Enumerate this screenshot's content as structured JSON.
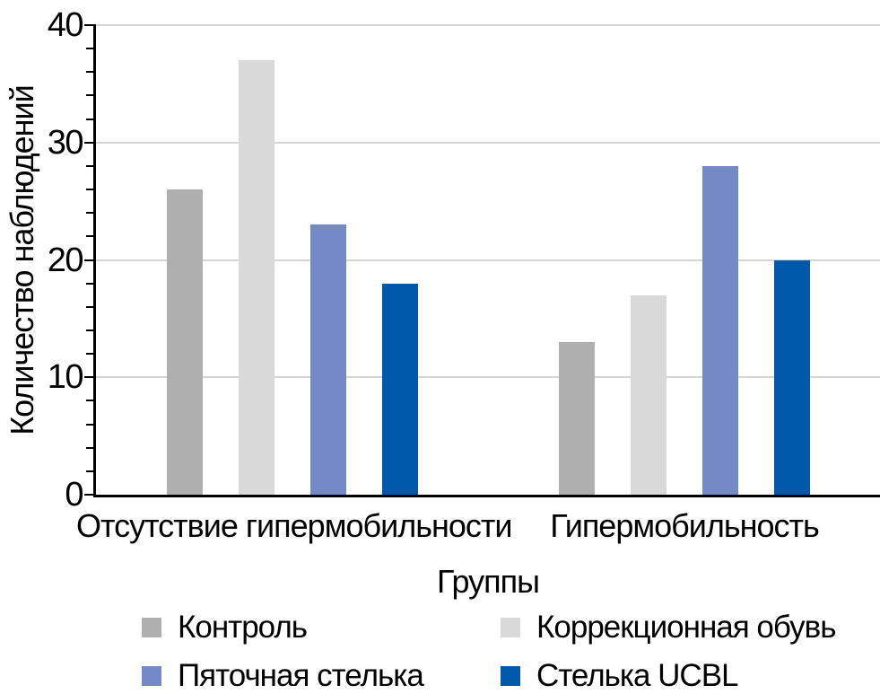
{
  "chart_data": {
    "type": "bar",
    "title": "",
    "categories": [
      "Отсутствие гипермобильности",
      "Гипермобильность"
    ],
    "series": [
      {
        "name": "Контроль",
        "color": "#afafaf",
        "values": [
          26,
          13
        ]
      },
      {
        "name": "Коррекционная обувь",
        "color": "#d9d9d9",
        "values": [
          37,
          17
        ]
      },
      {
        "name": "Пяточная стелька",
        "color": "#7589c6",
        "values": [
          23,
          28
        ]
      },
      {
        "name": "Стелька UCBL",
        "color": "#0058ab",
        "values": [
          18,
          20
        ]
      }
    ],
    "xlabel": "Группы",
    "ylabel": "Количество наблюдений",
    "ylim": [
      0,
      40
    ],
    "ytick_labels": [
      "0",
      "10",
      "20",
      "30",
      "40"
    ],
    "ytick_major_step": 10,
    "ytick_minor_step": 2,
    "grid": "horizontal-major-gridlines",
    "legend_position": "bottom-two-columns",
    "colors": {
      "axis": "#000000",
      "gridline": "#d5d5d5",
      "text": "#000000",
      "background": "#ffffff"
    }
  }
}
